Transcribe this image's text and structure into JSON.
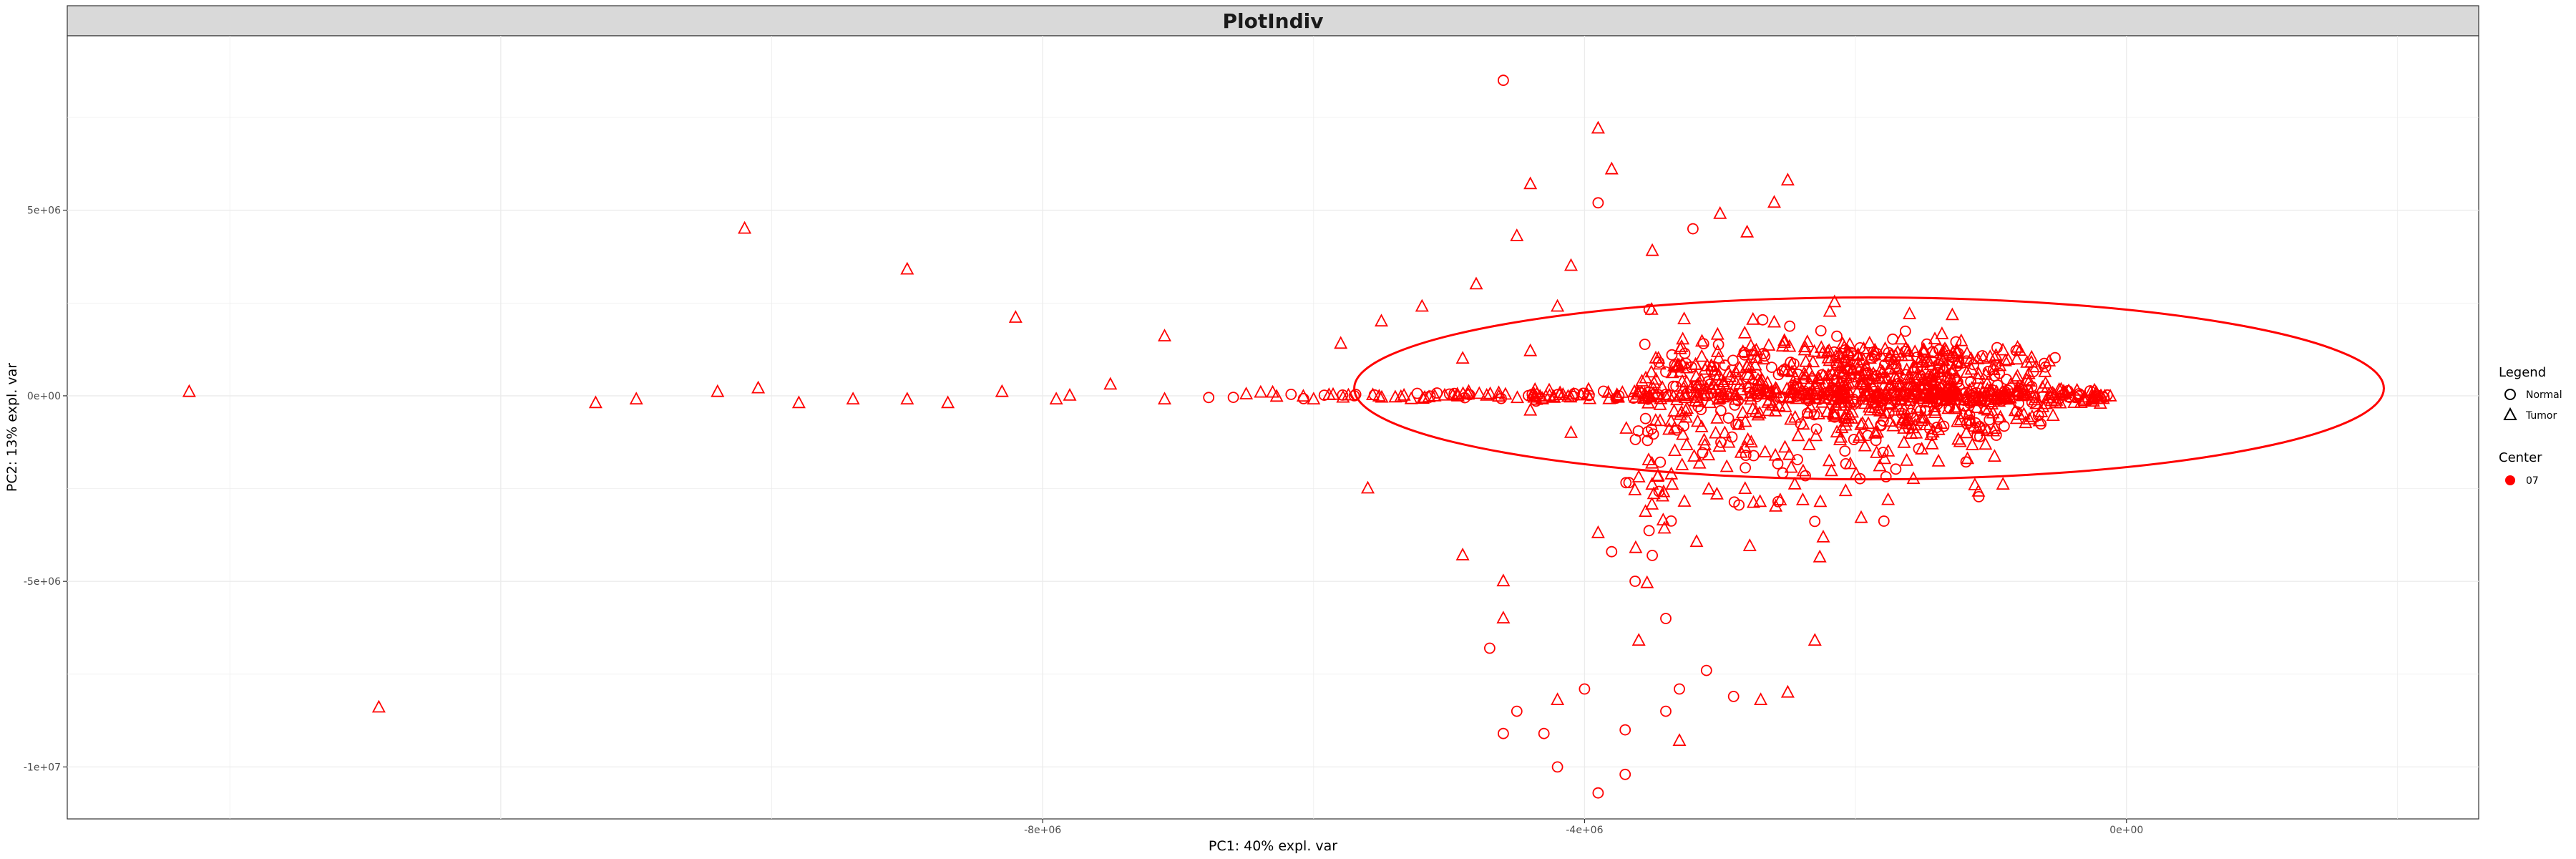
{
  "chart_data": {
    "type": "scatter",
    "title": "PlotIndiv",
    "xlabel": "PC1: 40% expl. var",
    "ylabel": "PC2: 13% expl. var",
    "xlim": [
      -15200000,
      2600000
    ],
    "ylim": [
      -11400000,
      9700000
    ],
    "x_ticks": [
      {
        "value": -8000000,
        "label": "-8e+06"
      },
      {
        "value": -4000000,
        "label": "-4e+06"
      },
      {
        "value": 0,
        "label": "0e+00"
      }
    ],
    "y_ticks": [
      {
        "value": 5000000,
        "label": "5e+06"
      },
      {
        "value": 0,
        "label": "0e+00"
      },
      {
        "value": -5000000,
        "label": "-5e+06"
      },
      {
        "value": -10000000,
        "label": "-1e+07"
      }
    ],
    "grid": true,
    "point_color": "#ff0000",
    "legend": {
      "placement": "right",
      "shape_title": "Legend",
      "shape_items": [
        {
          "label": "Normal",
          "shape": "circle"
        },
        {
          "label": "Tumor",
          "shape": "triangle"
        }
      ],
      "color_title": "Center",
      "color_items": [
        {
          "label": "07",
          "color": "#ff0000"
        }
      ]
    },
    "ellipse": {
      "center_x": -1900000,
      "center_y": 200000,
      "semi_axis_x": 3800000,
      "semi_axis_y": 2450000
    },
    "outlier_points": [
      {
        "x": -4600000,
        "y": 8500000,
        "group": "Normal"
      },
      {
        "x": -3900000,
        "y": 7200000,
        "group": "Tumor"
      },
      {
        "x": -3800000,
        "y": 6100000,
        "group": "Tumor"
      },
      {
        "x": -4400000,
        "y": 5700000,
        "group": "Tumor"
      },
      {
        "x": -3500000,
        "y": 3900000,
        "group": "Tumor"
      },
      {
        "x": -4500000,
        "y": 4300000,
        "group": "Tumor"
      },
      {
        "x": -10200000,
        "y": 4500000,
        "group": "Tumor"
      },
      {
        "x": -9000000,
        "y": 3400000,
        "group": "Tumor"
      },
      {
        "x": -8200000,
        "y": 2100000,
        "group": "Tumor"
      },
      {
        "x": -7100000,
        "y": 1600000,
        "group": "Tumor"
      },
      {
        "x": -5800000,
        "y": 1400000,
        "group": "Tumor"
      },
      {
        "x": -14300000,
        "y": 100000,
        "group": "Tumor"
      },
      {
        "x": -11300000,
        "y": -200000,
        "group": "Tumor"
      },
      {
        "x": -11000000,
        "y": -100000,
        "group": "Tumor"
      },
      {
        "x": -10400000,
        "y": 100000,
        "group": "Tumor"
      },
      {
        "x": -10100000,
        "y": 200000,
        "group": "Tumor"
      },
      {
        "x": -9800000,
        "y": -200000,
        "group": "Tumor"
      },
      {
        "x": -9400000,
        "y": -100000,
        "group": "Tumor"
      },
      {
        "x": -9000000,
        "y": -100000,
        "group": "Tumor"
      },
      {
        "x": -8700000,
        "y": -200000,
        "group": "Tumor"
      },
      {
        "x": -8300000,
        "y": 100000,
        "group": "Tumor"
      },
      {
        "x": -7900000,
        "y": -100000,
        "group": "Tumor"
      },
      {
        "x": -7500000,
        "y": 300000,
        "group": "Tumor"
      },
      {
        "x": -7100000,
        "y": -100000,
        "group": "Tumor"
      },
      {
        "x": -12900000,
        "y": -8400000,
        "group": "Tumor"
      },
      {
        "x": -5600000,
        "y": -2500000,
        "group": "Tumor"
      },
      {
        "x": -4900000,
        "y": -4300000,
        "group": "Tumor"
      },
      {
        "x": -4700000,
        "y": -6800000,
        "group": "Normal"
      },
      {
        "x": -4600000,
        "y": -9100000,
        "group": "Normal"
      },
      {
        "x": -4500000,
        "y": -8500000,
        "group": "Normal"
      },
      {
        "x": -4300000,
        "y": -9100000,
        "group": "Normal"
      },
      {
        "x": -4200000,
        "y": -10000000,
        "group": "Normal"
      },
      {
        "x": -3900000,
        "y": -10700000,
        "group": "Normal"
      },
      {
        "x": -3700000,
        "y": -10200000,
        "group": "Normal"
      },
      {
        "x": -4000000,
        "y": -7900000,
        "group": "Normal"
      },
      {
        "x": -3700000,
        "y": -9000000,
        "group": "Normal"
      },
      {
        "x": -3400000,
        "y": -8500000,
        "group": "Normal"
      },
      {
        "x": -3300000,
        "y": -7900000,
        "group": "Normal"
      },
      {
        "x": -4600000,
        "y": -5000000,
        "group": "Tumor"
      },
      {
        "x": -4600000,
        "y": -6000000,
        "group": "Tumor"
      },
      {
        "x": -4200000,
        "y": -8200000,
        "group": "Tumor"
      },
      {
        "x": -3300000,
        "y": -9300000,
        "group": "Tumor"
      },
      {
        "x": -2700000,
        "y": -8200000,
        "group": "Tumor"
      },
      {
        "x": -3600000,
        "y": -6600000,
        "group": "Tumor"
      },
      {
        "x": -3400000,
        "y": -6000000,
        "group": "Normal"
      },
      {
        "x": -3900000,
        "y": -3700000,
        "group": "Tumor"
      },
      {
        "x": -3800000,
        "y": -4200000,
        "group": "Normal"
      },
      {
        "x": -3500000,
        "y": -4300000,
        "group": "Normal"
      },
      {
        "x": -3600000,
        "y": -2200000,
        "group": "Tumor"
      },
      {
        "x": -3100000,
        "y": -7400000,
        "group": "Normal"
      },
      {
        "x": -3200000,
        "y": 4500000,
        "group": "Normal"
      },
      {
        "x": -3000000,
        "y": 4900000,
        "group": "Tumor"
      },
      {
        "x": -2800000,
        "y": 4400000,
        "group": "Tumor"
      },
      {
        "x": -2600000,
        "y": 5200000,
        "group": "Tumor"
      },
      {
        "x": -2500000,
        "y": 5800000,
        "group": "Tumor"
      },
      {
        "x": -3900000,
        "y": 5200000,
        "group": "Normal"
      },
      {
        "x": -4100000,
        "y": 3500000,
        "group": "Tumor"
      },
      {
        "x": -4800000,
        "y": 3000000,
        "group": "Tumor"
      },
      {
        "x": -5200000,
        "y": 2400000,
        "group": "Tumor"
      },
      {
        "x": -5500000,
        "y": 2000000,
        "group": "Tumor"
      },
      {
        "x": -4900000,
        "y": 1000000,
        "group": "Tumor"
      },
      {
        "x": -4400000,
        "y": 1200000,
        "group": "Tumor"
      },
      {
        "x": -4200000,
        "y": 2400000,
        "group": "Tumor"
      },
      {
        "x": -4400000,
        "y": -400000,
        "group": "Tumor"
      },
      {
        "x": -4100000,
        "y": -1000000,
        "group": "Tumor"
      },
      {
        "x": -7800000,
        "y": 0,
        "group": "Tumor"
      },
      {
        "x": -6000000,
        "y": -100000,
        "group": "Tumor"
      },
      {
        "x": -5700000,
        "y": 0,
        "group": "Normal"
      },
      {
        "x": -2900000,
        "y": -8100000,
        "group": "Normal"
      },
      {
        "x": -2500000,
        "y": -8000000,
        "group": "Tumor"
      },
      {
        "x": -2300000,
        "y": -6600000,
        "group": "Tumor"
      }
    ],
    "cluster_summary": {
      "band": {
        "x_range": [
          -7000000,
          -100000
        ],
        "y_sd": 60000,
        "count": 380
      },
      "upper_cloud": {
        "x_range": [
          -3600000,
          -1200000
        ],
        "y_range": [
          0,
          3600000
        ],
        "count": 360
      },
      "lower_cloud": {
        "x_range": [
          -3700000,
          -900000
        ],
        "y_range": [
          -6700000,
          -100000
        ],
        "count": 260
      },
      "right_band": {
        "x_range": [
          -2200000,
          -500000
        ],
        "y_range": [
          -900000,
          1300000
        ],
        "count": 260
      }
    }
  }
}
